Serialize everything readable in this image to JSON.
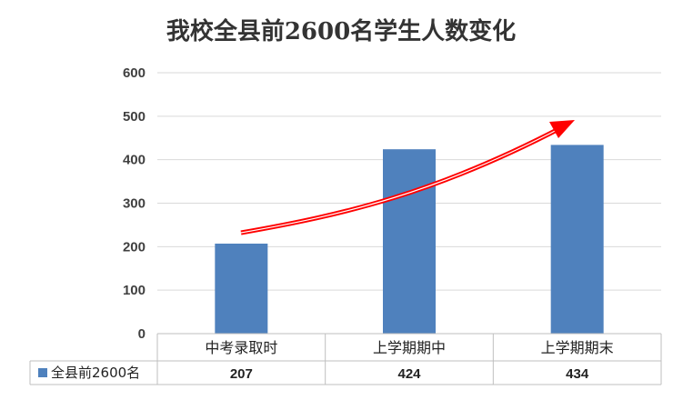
{
  "chart_data": {
    "type": "bar",
    "title": "我校全县前2600名学生人数变化",
    "categories": [
      "中考录取时",
      "上学期期中",
      "上学期期末"
    ],
    "series": [
      {
        "name": "全县前2600名",
        "values": [
          207,
          424,
          434
        ],
        "color": "#4F81BD"
      }
    ],
    "ylim": [
      0,
      600
    ],
    "yticks": [
      0,
      100,
      200,
      300,
      400,
      500,
      600
    ],
    "grid": true,
    "data_table": true,
    "legend": "data-table-left",
    "annotation": {
      "type": "trend-arrow",
      "direction": "up",
      "color": "#FF0000"
    }
  }
}
